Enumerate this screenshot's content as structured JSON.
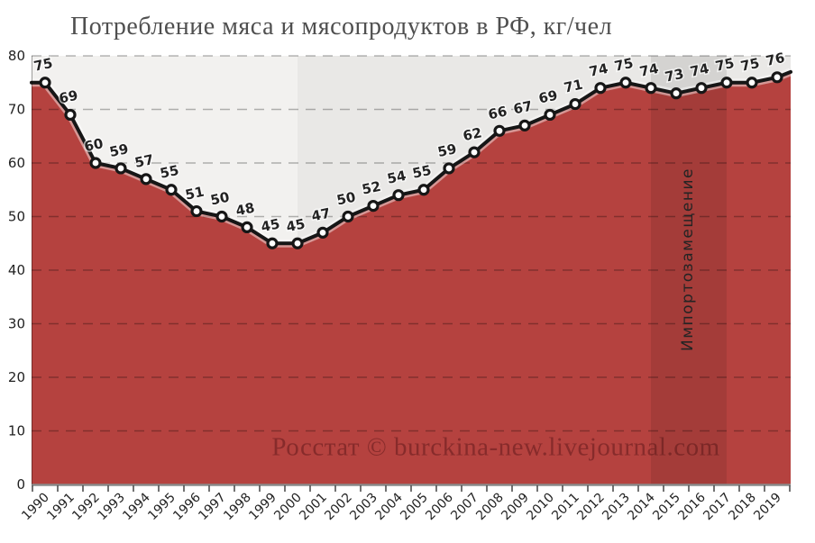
{
  "chart_data": {
    "type": "area",
    "title": "Потребление мяса и мясопродуктов в РФ, кг/чел",
    "x": [
      1990,
      1991,
      1992,
      1993,
      1994,
      1995,
      1996,
      1997,
      1998,
      1999,
      2000,
      2001,
      2002,
      2003,
      2004,
      2005,
      2006,
      2007,
      2008,
      2009,
      2010,
      2011,
      2012,
      2013,
      2014,
      2015,
      2016,
      2017,
      2018,
      2019
    ],
    "values": [
      75,
      69,
      60,
      59,
      57,
      55,
      51,
      50,
      48,
      45,
      45,
      47,
      50,
      52,
      54,
      55,
      59,
      62,
      66,
      67,
      69,
      71,
      74,
      75,
      74,
      73,
      74,
      75,
      75,
      76
    ],
    "xlabel": "",
    "ylabel": "",
    "ylim": [
      0,
      80
    ],
    "yticks": [
      0,
      10,
      20,
      30,
      40,
      50,
      60,
      70,
      80
    ],
    "grid": "horizontal-dashed",
    "legend": "none",
    "point_labels_shown": true,
    "annotations": {
      "watermark": "Росстат © burckina-new.livejournal.com",
      "highlight_band": {
        "from_year": 2014,
        "to_year": 2017,
        "label": "Импортозамещение"
      },
      "background_split_year": 2000
    },
    "colors": {
      "area_fill": "#b5423f",
      "line": "#161616",
      "marker_fill": "#ffffff",
      "marker_stroke": "#161616",
      "plot_bg_left": "#f2f1ef",
      "plot_bg_right": "#e9e8e6",
      "highlight_overlay": "rgba(0,0,0,0.09)",
      "gridline": "rgba(0,0,0,0.28)",
      "axis": "#8a8a8a",
      "tick": "#444444",
      "title_color": "#4f4f4f"
    }
  }
}
